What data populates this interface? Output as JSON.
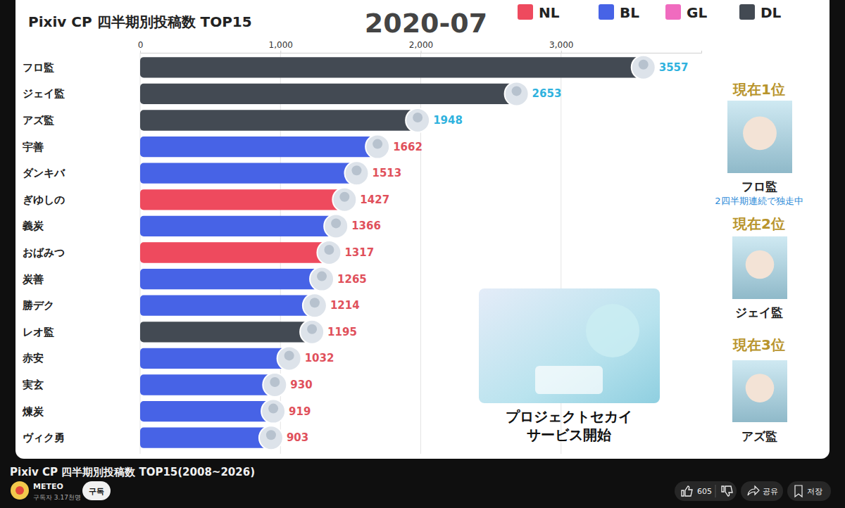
{
  "chart_data": {
    "type": "bar",
    "orientation": "horizontal",
    "title": "Pixiv CP 四半期別投稿数 TOP15",
    "subtitle": "2020-07",
    "categories": [
      "フロ監",
      "ジェイ監",
      "アズ監",
      "宇善",
      "ダンキバ",
      "ぎゆしの",
      "義炭",
      "おばみつ",
      "炭善",
      "勝デク",
      "レオ監",
      "赤安",
      "実玄",
      "煉炭",
      "ヴィク勇"
    ],
    "series": [
      {
        "name": "NL",
        "color": "#ee4a5e",
        "values": [
          null,
          null,
          null,
          null,
          null,
          1427,
          null,
          1317,
          null,
          null,
          null,
          null,
          null,
          null,
          null
        ]
      },
      {
        "name": "BL",
        "color": "#4763e6",
        "values": [
          null,
          null,
          null,
          1662,
          1513,
          null,
          1366,
          null,
          1265,
          1214,
          null,
          1032,
          930,
          919,
          903
        ]
      },
      {
        "name": "GL",
        "color": "#f06bbf",
        "values": [
          null,
          null,
          null,
          null,
          null,
          null,
          null,
          null,
          null,
          null,
          null,
          null,
          null,
          null,
          null
        ]
      },
      {
        "name": "DL",
        "color": "#434a53",
        "values": [
          3557,
          2653,
          1948,
          null,
          null,
          null,
          null,
          null,
          null,
          null,
          1195,
          null,
          null,
          null,
          null
        ]
      }
    ],
    "xlim": [
      0,
      4000
    ],
    "xticks": [
      0,
      {
        "value": 1000,
        "label": "1,000"
      },
      {
        "value": 2000,
        "label": "2,000"
      },
      {
        "value": 3000,
        "label": "3,000"
      }
    ],
    "grid": true,
    "legend": "top-right",
    "data_labels": true,
    "annotations": {
      "event": [
        "プロジェクトセカイ",
        "サービス開始"
      ],
      "ranking": [
        {
          "heading": "現在1位",
          "name": "フロ監",
          "note": "2四半期連続で独走中"
        },
        {
          "heading": "現在2位",
          "name": "ジェイ監"
        },
        {
          "heading": "現在3位",
          "name": "アズ監"
        }
      ]
    }
  },
  "page": {
    "video_title": "Pixiv CP 四半期別投稿数 TOP15(2008~2026)",
    "channel": "METEO",
    "subscribers": "구독자 3.17천명",
    "subscribe_button": "구독",
    "likes": 605,
    "share": "공유",
    "save": "저장"
  }
}
